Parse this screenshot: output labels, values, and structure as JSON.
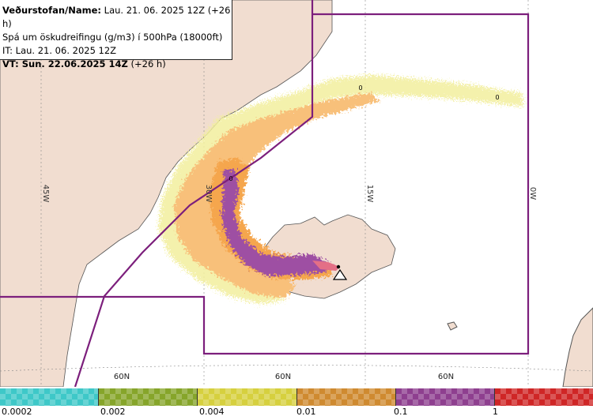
{
  "info": {
    "line1_label": "Veðurstofan/Name:",
    "line1_value": "Lau. 21. 06. 2025 12Z (+26 h)",
    "line2": "Spá um öskudreifingu (g/m3) í 500hPa (18000ft)",
    "line3": "IT: Lau. 21. 06. 2025 12Z",
    "line4_label": "VT: Sun. 22.06.2025 14Z",
    "line4_value": "(+26 h)"
  },
  "map": {
    "longitude_labels": [
      "45W",
      "30W",
      "15W",
      "0W"
    ],
    "latitude_labels": [
      "60N",
      "60N",
      "60N"
    ],
    "contour_labels": [
      "0",
      "0",
      "0"
    ],
    "colors": {
      "land": "#f1ddd0",
      "sea": "#ffffff",
      "boundary": "#7c1f7c",
      "ash_trace": "#f3ef9e",
      "ash_low": "#f8c07a",
      "ash_mid": "#f5a64e",
      "ash_high": "#9e4fa3",
      "ash_peak": "#e46f86"
    },
    "volcano_marker": "triangle-icon"
  },
  "legend": {
    "ticks": [
      "0.0002",
      "0.002",
      "0.004",
      "0.01",
      "0.1",
      "1"
    ],
    "colors": [
      "#3ec8c8",
      "#86a52a",
      "#d6d03e",
      "#cf8a30",
      "#8e3f8f",
      "#cf2626"
    ]
  }
}
